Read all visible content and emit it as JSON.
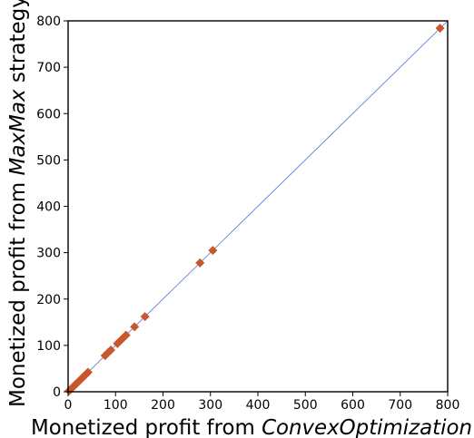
{
  "chart_data": {
    "type": "scatter",
    "xlabel_parts": [
      {
        "text": "Monetized profit from ",
        "italic": false
      },
      {
        "text": "ConvexOptimization",
        "italic": true
      }
    ],
    "ylabel_parts": [
      {
        "text": "Monetized profit from ",
        "italic": false
      },
      {
        "text": "MaxMax",
        "italic": true
      },
      {
        "text": " strategy",
        "italic": false
      }
    ],
    "xlim": [
      0,
      800
    ],
    "ylim": [
      0,
      800
    ],
    "xticks": [
      "0",
      "100",
      "200",
      "300",
      "400",
      "500",
      "600",
      "700",
      "800"
    ],
    "yticks": [
      "0",
      "100",
      "200",
      "300",
      "400",
      "500",
      "600",
      "700",
      "800"
    ],
    "grid": false,
    "reference_line": {
      "from": [
        0,
        0
      ],
      "to": [
        800,
        800
      ],
      "color": "#4a6fd4"
    },
    "marker_color": "#c8572b",
    "marker_shape": "diamond",
    "x": [
      2,
      5,
      8,
      12,
      15,
      18,
      22,
      26,
      30,
      34,
      38,
      42,
      78,
      84,
      90,
      104,
      110,
      116,
      122,
      140,
      162,
      278,
      305,
      784
    ],
    "y": [
      2,
      5,
      8,
      12,
      15,
      18,
      22,
      26,
      30,
      34,
      38,
      42,
      78,
      84,
      90,
      104,
      110,
      116,
      122,
      140,
      162,
      278,
      305,
      784
    ]
  }
}
